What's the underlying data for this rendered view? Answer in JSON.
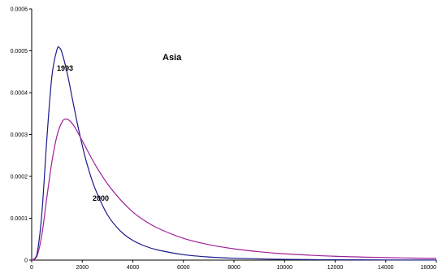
{
  "chart_data": {
    "type": "line",
    "title": "Asia",
    "xlabel": "",
    "ylabel": "",
    "xlim": [
      0,
      16000
    ],
    "ylim": [
      0,
      0.0006
    ],
    "x_ticks": [
      "0",
      "2000",
      "4000",
      "6000",
      "8000",
      "10000",
      "12000",
      "14000",
      "16000"
    ],
    "y_ticks": [
      "0",
      "0.0001",
      "0.0002",
      "0.0003",
      "0.0004",
      "0.0005",
      "0.0006"
    ],
    "grid": false,
    "legend": "none",
    "series": [
      {
        "name": "1993",
        "color": "#1a1a8c",
        "x": [
          0,
          200,
          400,
          600,
          800,
          1000,
          1100,
          1200,
          1400,
          1600,
          1800,
          2000,
          2200,
          2500,
          3000,
          3500,
          4000,
          4500,
          5000,
          6000,
          7000,
          8000,
          10000,
          12000,
          14000,
          16000
        ],
        "y": [
          0,
          1.2e-05,
          0.00011,
          0.00029,
          0.00044,
          0.000503,
          0.000507,
          0.000495,
          0.000448,
          0.000388,
          0.000328,
          0.000274,
          0.000227,
          0.000172,
          0.000108,
          7e-05,
          4.7e-05,
          3.3e-05,
          2.4e-05,
          1.3e-05,
          7.5e-06,
          4.5e-06,
          1.8e-06,
          8e-07,
          4e-07,
          2e-07
        ]
      },
      {
        "name": "2000",
        "color": "#a0209a",
        "x": [
          0,
          200,
          400,
          600,
          800,
          1000,
          1200,
          1350,
          1500,
          1700,
          2000,
          2500,
          3000,
          3500,
          4000,
          4500,
          5000,
          6000,
          7000,
          8000,
          9000,
          10000,
          12000,
          14000,
          16000
        ],
        "y": [
          0,
          8e-06,
          6e-05,
          0.00015,
          0.000235,
          0.000297,
          0.00033,
          0.000337,
          0.000333,
          0.000318,
          0.000285,
          0.000229,
          0.000182,
          0.000145,
          0.000115,
          9.3e-05,
          7.6e-05,
          5.2e-05,
          3.7e-05,
          2.7e-05,
          2e-05,
          1.5e-05,
          9.2e-06,
          6e-06,
          4.1e-06
        ]
      }
    ]
  }
}
